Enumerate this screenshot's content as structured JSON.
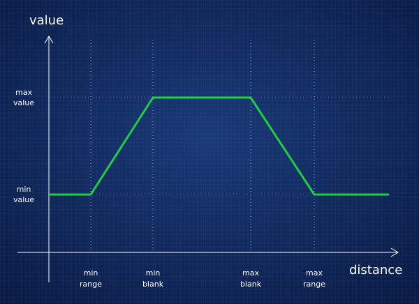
{
  "y_axis": {
    "label": "value",
    "markers": [
      {
        "lines": [
          "max",
          "value"
        ]
      },
      {
        "lines": [
          "min",
          "value"
        ]
      }
    ]
  },
  "x_axis": {
    "label": "distance",
    "markers": [
      {
        "lines": [
          "min",
          "range"
        ]
      },
      {
        "lines": [
          "min",
          "blank"
        ]
      },
      {
        "lines": [
          "max",
          "blank"
        ]
      },
      {
        "lines": [
          "max",
          "range"
        ]
      }
    ]
  }
}
